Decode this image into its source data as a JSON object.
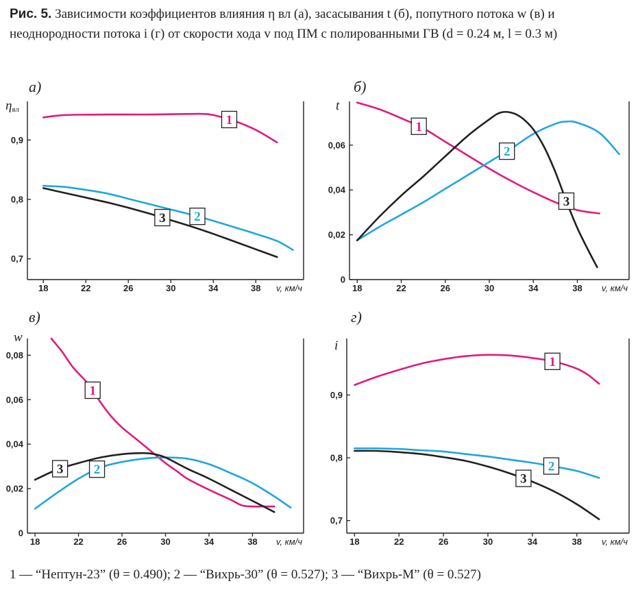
{
  "caption": {
    "figure": "Рис. 5.",
    "text": " Зависимости коэффициентов влияния η вл (а), засасывания t (б), попутного потока w (в) и неоднородности потока i (г) от скорости хода v под ПМ с полированными ГВ (d = 0.24 м, l = 0.3 м)"
  },
  "legend_text": "1 — “Нептун-23” (θ = 0.490); 2 — “Вихрь-30” (θ = 0.527); 3 — “Вихрь-М” (θ = 0.527)",
  "colors": {
    "1": "#e2197d",
    "2": "#1ea6dc",
    "3": "#231f20",
    "axis": "#231f20"
  },
  "chart_data": [
    {
      "type": "line",
      "panel_label": "а)",
      "ylabel": "η",
      "ylabel_sub": "вл",
      "xlabel": "v, км/ч",
      "xlim": [
        16.5,
        42.5
      ],
      "ylim": [
        0.665,
        0.965
      ],
      "xticks": [
        18,
        22,
        26,
        30,
        34,
        38
      ],
      "yticks": [
        0.7,
        0.8,
        0.9
      ],
      "ytick_labels": [
        "0,7",
        "0,8",
        "0,9"
      ],
      "series": [
        {
          "id": "1",
          "tag": "1",
          "tag_at": 35.5,
          "x": [
            18,
            20,
            24,
            28,
            32,
            33,
            34,
            36,
            38,
            40
          ],
          "y": [
            0.938,
            0.942,
            0.943,
            0.943,
            0.944,
            0.944,
            0.942,
            0.932,
            0.917,
            0.896
          ]
        },
        {
          "id": "2",
          "tag": "2",
          "tag_at": 32.5,
          "x": [
            18,
            20,
            22,
            24,
            26,
            28,
            30,
            32,
            34,
            36,
            38,
            40,
            41.5
          ],
          "y": [
            0.823,
            0.821,
            0.816,
            0.81,
            0.801,
            0.792,
            0.783,
            0.774,
            0.764,
            0.753,
            0.742,
            0.73,
            0.715
          ]
        },
        {
          "id": "3",
          "tag": "3",
          "tag_at": 29.2,
          "x": [
            18,
            20,
            22,
            24,
            26,
            28,
            30,
            32,
            34,
            36,
            38,
            40
          ],
          "y": [
            0.819,
            0.811,
            0.803,
            0.795,
            0.786,
            0.776,
            0.765,
            0.754,
            0.742,
            0.729,
            0.716,
            0.703
          ]
        }
      ]
    },
    {
      "type": "line",
      "panel_label": "б)",
      "ylabel": "t",
      "xlabel": "v, км/ч",
      "xlim": [
        17.3,
        42.7
      ],
      "ylim": [
        0,
        0.0795
      ],
      "xticks": [
        18,
        22,
        26,
        30,
        34,
        38
      ],
      "yticks": [
        0,
        0.02,
        0.04,
        0.06
      ],
      "ytick_labels": [
        "0",
        "0,02",
        "0,04",
        "0,06"
      ],
      "series": [
        {
          "id": "1",
          "tag": "1",
          "tag_at": 23.6,
          "x": [
            18,
            20,
            22,
            24,
            26,
            28,
            30,
            32,
            34,
            36,
            38,
            40
          ],
          "y": [
            0.079,
            0.076,
            0.072,
            0.0675,
            0.0615,
            0.0555,
            0.0495,
            0.044,
            0.039,
            0.0345,
            0.031,
            0.0295
          ]
        },
        {
          "id": "2",
          "tag": "2",
          "tag_at": 31.6,
          "x": [
            18,
            20,
            22,
            24,
            26,
            28,
            30,
            32,
            34,
            36,
            37,
            38,
            40,
            41.8
          ],
          "y": [
            0.0175,
            0.0235,
            0.029,
            0.0345,
            0.0405,
            0.0465,
            0.0525,
            0.0585,
            0.065,
            0.0695,
            0.0705,
            0.07,
            0.0655,
            0.056
          ]
        },
        {
          "id": "3",
          "tag": "3",
          "tag_at": 37.0,
          "x": [
            18,
            20,
            22,
            24,
            26,
            28,
            30,
            31,
            32,
            33,
            34,
            35,
            36,
            37,
            38,
            39,
            39.8
          ],
          "y": [
            0.0175,
            0.028,
            0.0375,
            0.046,
            0.055,
            0.064,
            0.0715,
            0.0745,
            0.0745,
            0.072,
            0.067,
            0.059,
            0.048,
            0.035,
            0.023,
            0.013,
            0.0055
          ]
        }
      ]
    },
    {
      "type": "line",
      "panel_label": "в)",
      "ylabel": "w",
      "xlabel": "v, км/ч",
      "xlim": [
        17.3,
        42.7
      ],
      "ylim": [
        0,
        0.0875
      ],
      "xticks": [
        18,
        22,
        26,
        30,
        34,
        38
      ],
      "yticks": [
        0,
        0.02,
        0.04,
        0.06,
        0.08
      ],
      "ytick_labels": [
        "0",
        "0,02",
        "0,04",
        "0,06",
        "0,08"
      ],
      "series": [
        {
          "id": "1",
          "tag": "1",
          "tag_at": 23.3,
          "x": [
            19.5,
            20.5,
            21.5,
            23,
            24,
            25,
            26,
            27,
            28,
            29,
            30,
            31,
            32,
            34,
            36,
            37,
            38,
            39,
            40
          ],
          "y": [
            0.0875,
            0.0815,
            0.0745,
            0.0665,
            0.059,
            0.0525,
            0.0475,
            0.0435,
            0.0395,
            0.0355,
            0.0315,
            0.028,
            0.0245,
            0.0195,
            0.015,
            0.0125,
            0.012,
            0.012,
            0.012
          ]
        },
        {
          "id": "2",
          "tag": "2",
          "tag_at": 23.7,
          "x": [
            18,
            20,
            22,
            24,
            26,
            28,
            30,
            32,
            34,
            36,
            38,
            40,
            41.5
          ],
          "y": [
            0.011,
            0.018,
            0.0245,
            0.0295,
            0.032,
            0.0335,
            0.034,
            0.0335,
            0.031,
            0.027,
            0.0225,
            0.0165,
            0.0115
          ]
        },
        {
          "id": "3",
          "tag": "3",
          "tag_at": 20.3,
          "x": [
            18,
            20,
            22,
            24,
            26,
            28,
            29,
            30,
            32,
            34,
            36,
            38,
            40
          ],
          "y": [
            0.024,
            0.0285,
            0.0315,
            0.034,
            0.0355,
            0.036,
            0.0355,
            0.034,
            0.029,
            0.0245,
            0.0195,
            0.0145,
            0.0095
          ]
        }
      ]
    },
    {
      "type": "line",
      "panel_label": "г)",
      "ylabel": "i",
      "xlabel": "v, км/ч",
      "xlim": [
        17.3,
        42.7
      ],
      "ylim": [
        0.68,
        0.99
      ],
      "xticks": [
        18,
        22,
        26,
        30,
        34,
        38
      ],
      "yticks": [
        0.7,
        0.8,
        0.9
      ],
      "ytick_labels": [
        "0,7",
        "0,8",
        "0,9"
      ],
      "series": [
        {
          "id": "1",
          "tag": "1",
          "tag_at": 35.8,
          "x": [
            18,
            20,
            22,
            24,
            26,
            28,
            30,
            32,
            34,
            36,
            38,
            39,
            40
          ],
          "y": [
            0.916,
            0.929,
            0.94,
            0.95,
            0.957,
            0.962,
            0.964,
            0.963,
            0.959,
            0.953,
            0.942,
            0.932,
            0.918
          ]
        },
        {
          "id": "2",
          "tag": "2",
          "tag_at": 35.7,
          "x": [
            18,
            20,
            22,
            24,
            26,
            28,
            30,
            32,
            34,
            36,
            38,
            40
          ],
          "y": [
            0.815,
            0.815,
            0.814,
            0.812,
            0.81,
            0.806,
            0.802,
            0.797,
            0.792,
            0.786,
            0.779,
            0.768
          ]
        },
        {
          "id": "3",
          "tag": "3",
          "tag_at": 33.2,
          "x": [
            18,
            20,
            22,
            24,
            26,
            28,
            30,
            32,
            34,
            36,
            38,
            40
          ],
          "y": [
            0.811,
            0.811,
            0.809,
            0.806,
            0.801,
            0.795,
            0.786,
            0.775,
            0.762,
            0.746,
            0.726,
            0.702
          ]
        }
      ]
    }
  ]
}
